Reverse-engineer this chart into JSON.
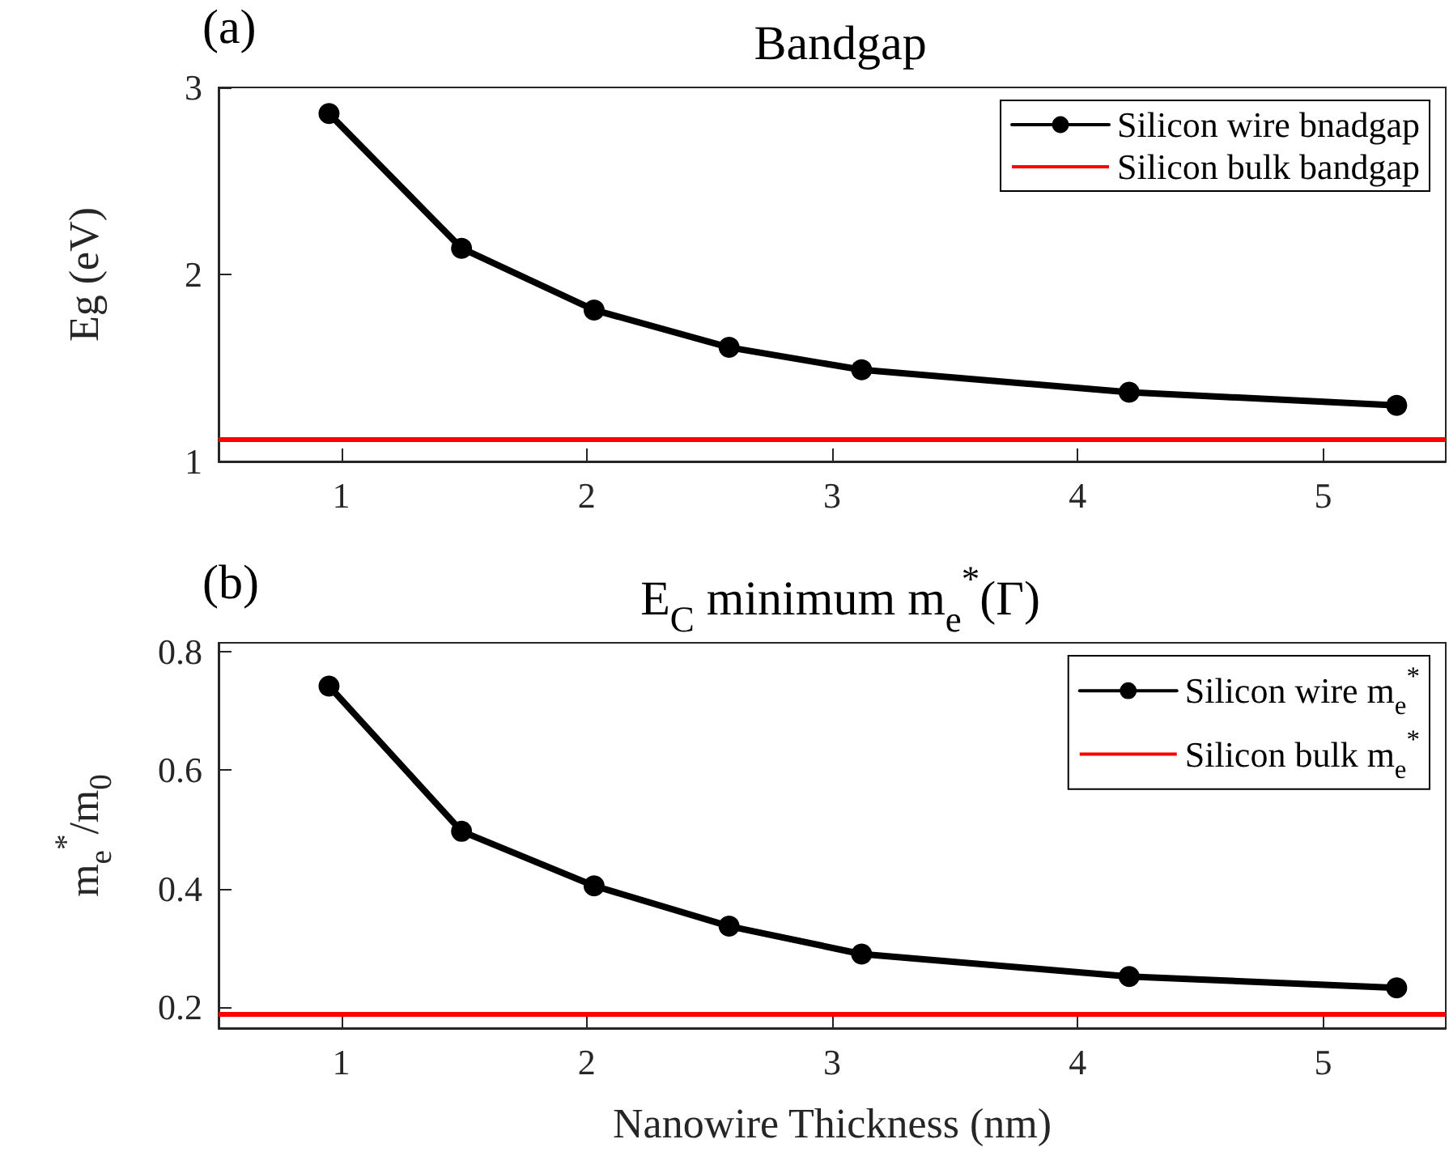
{
  "chart_data": [
    {
      "type": "line",
      "title": "Bandgap",
      "ylabel": "Eg (eV)",
      "annotations": [
        "(a)"
      ],
      "x": [
        0.95,
        1.49,
        2.03,
        2.58,
        3.12,
        4.21,
        5.3
      ],
      "series": [
        {
          "name": "Silicon wire bnadgap",
          "color": "#000000",
          "values": [
            2.86,
            2.14,
            1.81,
            1.61,
            1.49,
            1.37,
            1.3
          ]
        }
      ],
      "ref_lines": [
        {
          "axis": "y",
          "value": 1.12,
          "label": "Silicon bulk bandgap",
          "color": "#ff0000"
        }
      ],
      "xlim": [
        0.5,
        5.5
      ],
      "xticks": [
        1,
        2,
        3,
        4,
        5
      ],
      "ylim": [
        1,
        3
      ],
      "yticks": [
        1,
        2,
        3
      ],
      "grid": false,
      "legend": "top right",
      "marker": "circle",
      "line_style": "solid"
    },
    {
      "type": "line",
      "title": "E$_{C}$ minimum m$_{e}$$^{*}$(Γ)",
      "xlabel": "Nanowire Thickness (nm)",
      "ylabel": "m$_{e}$$^{*}$/m$_{0}$",
      "annotations": [
        "(b)"
      ],
      "x": [
        0.95,
        1.49,
        2.03,
        2.58,
        3.12,
        4.21,
        5.3
      ],
      "series": [
        {
          "name": "Silicon wire m$_{e}$$^{*}$",
          "color": "#000000",
          "values": [
            0.742,
            0.497,
            0.405,
            0.337,
            0.29,
            0.252,
            0.233
          ]
        }
      ],
      "ref_lines": [
        {
          "axis": "y",
          "value": 0.19,
          "label": "Silicon bulk m$_{e}$$^{*}$",
          "color": "#ff0000"
        }
      ],
      "xlim": [
        0.5,
        5.5
      ],
      "xticks": [
        1,
        2,
        3,
        4,
        5
      ],
      "ylim": [
        0.165,
        0.815
      ],
      "yticks": [
        0.2,
        0.4,
        0.6,
        0.8
      ],
      "grid": false,
      "legend": "top right",
      "marker": "circle",
      "line_style": "solid"
    }
  ]
}
